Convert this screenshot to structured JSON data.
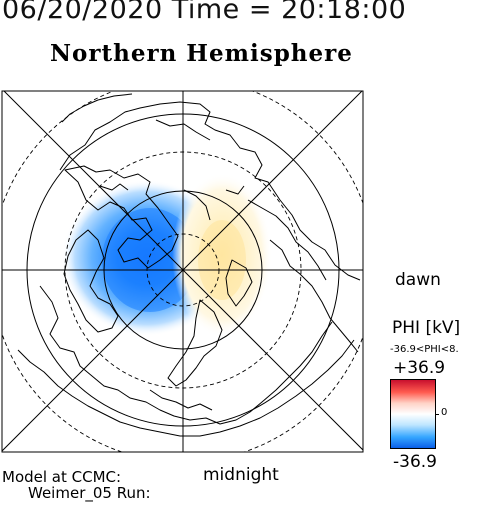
{
  "header": {
    "datetime": "06/20/2020 Time = 20:18:00",
    "hemisphere": "Northern Hemisphere"
  },
  "labels": {
    "dawn": "dawn",
    "midnight": "midnight"
  },
  "model": {
    "line1": "Model at CCMC:",
    "line2": "Weimer_05 Run:"
  },
  "colorbar": {
    "title": "PHI [kV]",
    "range_text": "-36.9<PHI<8.",
    "max_label": "+36.9",
    "zero_label": "0",
    "min_label": "-36.9",
    "colors": {
      "max": "#c8102e",
      "zero": "#ffffff",
      "min": "#0a5fe8"
    }
  },
  "map": {
    "projection": "polar stereographic, north pole at center",
    "potential_cells": [
      {
        "name": "negative cell",
        "sector": "dusk/noon side",
        "min_kv": -36.9,
        "color": "#1e7bff"
      },
      {
        "name": "positive cell",
        "sector": "dawn side",
        "max_kv": 8,
        "color": "#fff0b8"
      }
    ]
  }
}
